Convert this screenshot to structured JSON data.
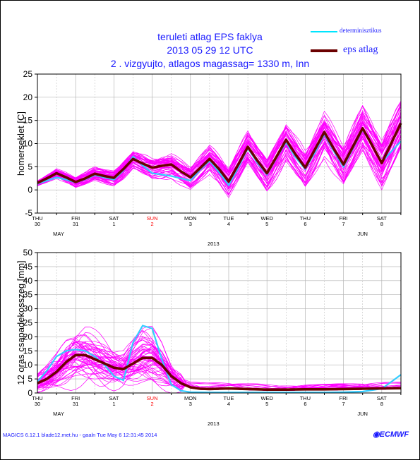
{
  "header": {
    "title_line1": "teruleti atlag EPS faklya",
    "title_line2": "2013 05 29 12 UTC",
    "title_line3": "2 . vizgyujto, atlagos magassag= 1330 m, Inn"
  },
  "legend": {
    "deterministic": {
      "label": "determinisztikus",
      "color": "#00e5ff"
    },
    "mean": {
      "label": "eps atlag",
      "color": "#6b0000"
    }
  },
  "colors": {
    "ensemble": "#ff00ff",
    "deterministic": "#33ccff",
    "mean": "#6b0000",
    "axis": "#000000",
    "grid": "#b4b4b4",
    "title": "#1a1aff",
    "sunday": "#ff0000"
  },
  "time_axis": {
    "days": [
      {
        "dow": "THU",
        "day": "30"
      },
      {
        "dow": "FRI",
        "day": "31"
      },
      {
        "dow": "SAT",
        "day": "1"
      },
      {
        "dow": "SUN",
        "day": "2"
      },
      {
        "dow": "MON",
        "day": "3"
      },
      {
        "dow": "TUE",
        "day": "4"
      },
      {
        "dow": "WED",
        "day": "5"
      },
      {
        "dow": "THU",
        "day": "6"
      },
      {
        "dow": "FRI",
        "day": "7"
      },
      {
        "dow": "SAT",
        "day": "8"
      }
    ],
    "month_may": "MAY",
    "month_jun": "JUN",
    "year": "2013"
  },
  "chart_data": [
    {
      "type": "line",
      "ylabel": "homerseklet [C]",
      "ylim": [
        -5,
        25
      ],
      "yticks": [
        "-5",
        "0",
        "5",
        "10",
        "15",
        "20",
        "25"
      ],
      "x_unit": "days from 2013-05-30 00 UTC",
      "xlim": [
        0,
        9.5
      ],
      "grid": true,
      "series": [
        {
          "name": "eps atlag",
          "x": [
            0,
            0.25,
            0.5,
            0.75,
            1,
            1.25,
            1.5,
            1.75,
            2,
            2.25,
            2.5,
            2.75,
            3,
            3.25,
            3.5,
            3.75,
            4,
            4.25,
            4.5,
            4.75,
            5,
            5.25,
            5.5,
            5.75,
            6,
            6.25,
            6.5,
            6.75,
            7,
            7.25,
            7.5,
            7.75,
            8,
            8.25,
            8.5,
            8.75,
            9,
            9.25,
            9.5
          ],
          "values": [
            1.5,
            2.5,
            3.6,
            2.7,
            1.7,
            2.5,
            3.5,
            3.0,
            2.6,
            4.5,
            6.7,
            5.7,
            4.8,
            5.2,
            5.5,
            4.0,
            2.7,
            4.7,
            6.7,
            4.5,
            1.8,
            5.5,
            9.3,
            6.3,
            3.6,
            7.2,
            10.8,
            7.6,
            4.8,
            8.7,
            12.5,
            8.8,
            5.5,
            9.4,
            13.3,
            9.6,
            5.8,
            10.1,
            14.4
          ]
        },
        {
          "name": "determinisztikus",
          "x": [
            0,
            0.25,
            0.5,
            0.75,
            1,
            1.25,
            1.5,
            1.75,
            2,
            2.25,
            2.5,
            2.75,
            3,
            3.25,
            3.5,
            3.75,
            4,
            4.25,
            4.5,
            4.75,
            5,
            5.25,
            5.5,
            5.75,
            6,
            6.25,
            6.5,
            6.75,
            7,
            7.25,
            7.5,
            7.75,
            8,
            8.25,
            8.5,
            8.75,
            9,
            9.25,
            9.5
          ],
          "values": [
            1.3,
            2.0,
            2.7,
            2.2,
            1.6,
            2.3,
            3.2,
            2.7,
            2.2,
            4.2,
            7.2,
            5.3,
            3.6,
            3.3,
            3.0,
            2.5,
            2.0,
            4.3,
            6.3,
            3.8,
            1.0,
            4.8,
            9.0,
            5.8,
            3.3,
            6.9,
            10.3,
            7.0,
            4.5,
            8.0,
            12.0,
            8.3,
            5.0,
            9.0,
            13.0,
            9.5,
            6.0,
            8.3,
            10.5
          ]
        }
      ]
    },
    {
      "type": "line",
      "ylabel": "12 oras csapadekosszeg [mm]",
      "ylim": [
        0,
        50
      ],
      "yticks": [
        "0",
        "5",
        "10",
        "15",
        "20",
        "25",
        "30",
        "35",
        "40",
        "45",
        "50"
      ],
      "x_unit": "days from 2013-05-30 00 UTC",
      "xlim": [
        0,
        9.5
      ],
      "grid": true,
      "series": [
        {
          "name": "eps atlag",
          "x": [
            0,
            0.25,
            0.5,
            0.75,
            1,
            1.25,
            1.5,
            1.75,
            2,
            2.25,
            2.5,
            2.75,
            3,
            3.25,
            3.5,
            3.75,
            4,
            4.25,
            4.5,
            4.75,
            5,
            5.5,
            6,
            6.5,
            7,
            7.5,
            8,
            8.5,
            9,
            9.5
          ],
          "values": [
            3.5,
            5,
            7.5,
            11,
            13.5,
            13.5,
            12,
            10.5,
            9,
            8.5,
            10.5,
            12.5,
            12.5,
            10,
            6,
            3.5,
            2,
            1.5,
            1.4,
            1.5,
            1.6,
            1.4,
            1.2,
            1.2,
            1.3,
            1.3,
            1.4,
            1.5,
            1.6,
            1.7
          ]
        },
        {
          "name": "determinisztikus",
          "x": [
            0,
            0.25,
            0.5,
            0.75,
            1,
            1.25,
            1.5,
            1.75,
            2,
            2.25,
            2.5,
            2.75,
            3,
            3.25,
            3.5,
            3.75,
            4,
            4.5,
            5,
            5.5,
            6,
            6.5,
            7,
            7.5,
            8,
            8.5,
            9,
            9.25,
            9.5
          ],
          "values": [
            4,
            8,
            13,
            15,
            15.5,
            15,
            13,
            10,
            6,
            4.5,
            18,
            24,
            23,
            12,
            3,
            0.8,
            0.3,
            0.2,
            0.2,
            0.2,
            0.2,
            0.2,
            0.2,
            0.2,
            0.3,
            0.5,
            1.5,
            4,
            6.5
          ]
        }
      ]
    }
  ],
  "footer": {
    "left_text": "MAGICS 6.12.1 blade12.met.hu - gaaln Tue May  6 12:31:45 2014",
    "logo_text": "ECMWF"
  }
}
